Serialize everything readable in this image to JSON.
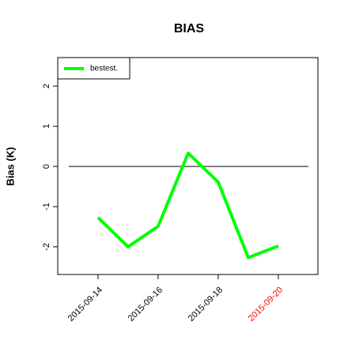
{
  "chart_data": {
    "type": "line",
    "title": "BIAS",
    "y_label": "Bias (K)",
    "x": [
      "2015-09-14",
      "2015-09-15",
      "2015-09-16",
      "2015-09-17",
      "2015-09-18",
      "2015-09-19",
      "2015-09-20"
    ],
    "series": [
      {
        "name": "bestest.",
        "color": "#00ff00",
        "values": [
          -1.27,
          -2.0,
          -1.49,
          0.33,
          -0.39,
          -2.27,
          -1.98
        ]
      }
    ],
    "xlim": [
      "2015-09-12T15:50Z",
      "2015-09-21T07:40Z"
    ],
    "xticks": [
      "2015-09-14",
      "2015-09-16",
      "2015-09-18",
      "2015-09-20"
    ],
    "xtick_colors": [
      "#000000",
      "#000000",
      "#000000",
      "#ff0000"
    ],
    "ylim": [
      -2.69,
      2.71
    ],
    "yticks": [
      -2,
      -1,
      0,
      1,
      2
    ],
    "reference_line": 0,
    "legend": "top-left"
  }
}
